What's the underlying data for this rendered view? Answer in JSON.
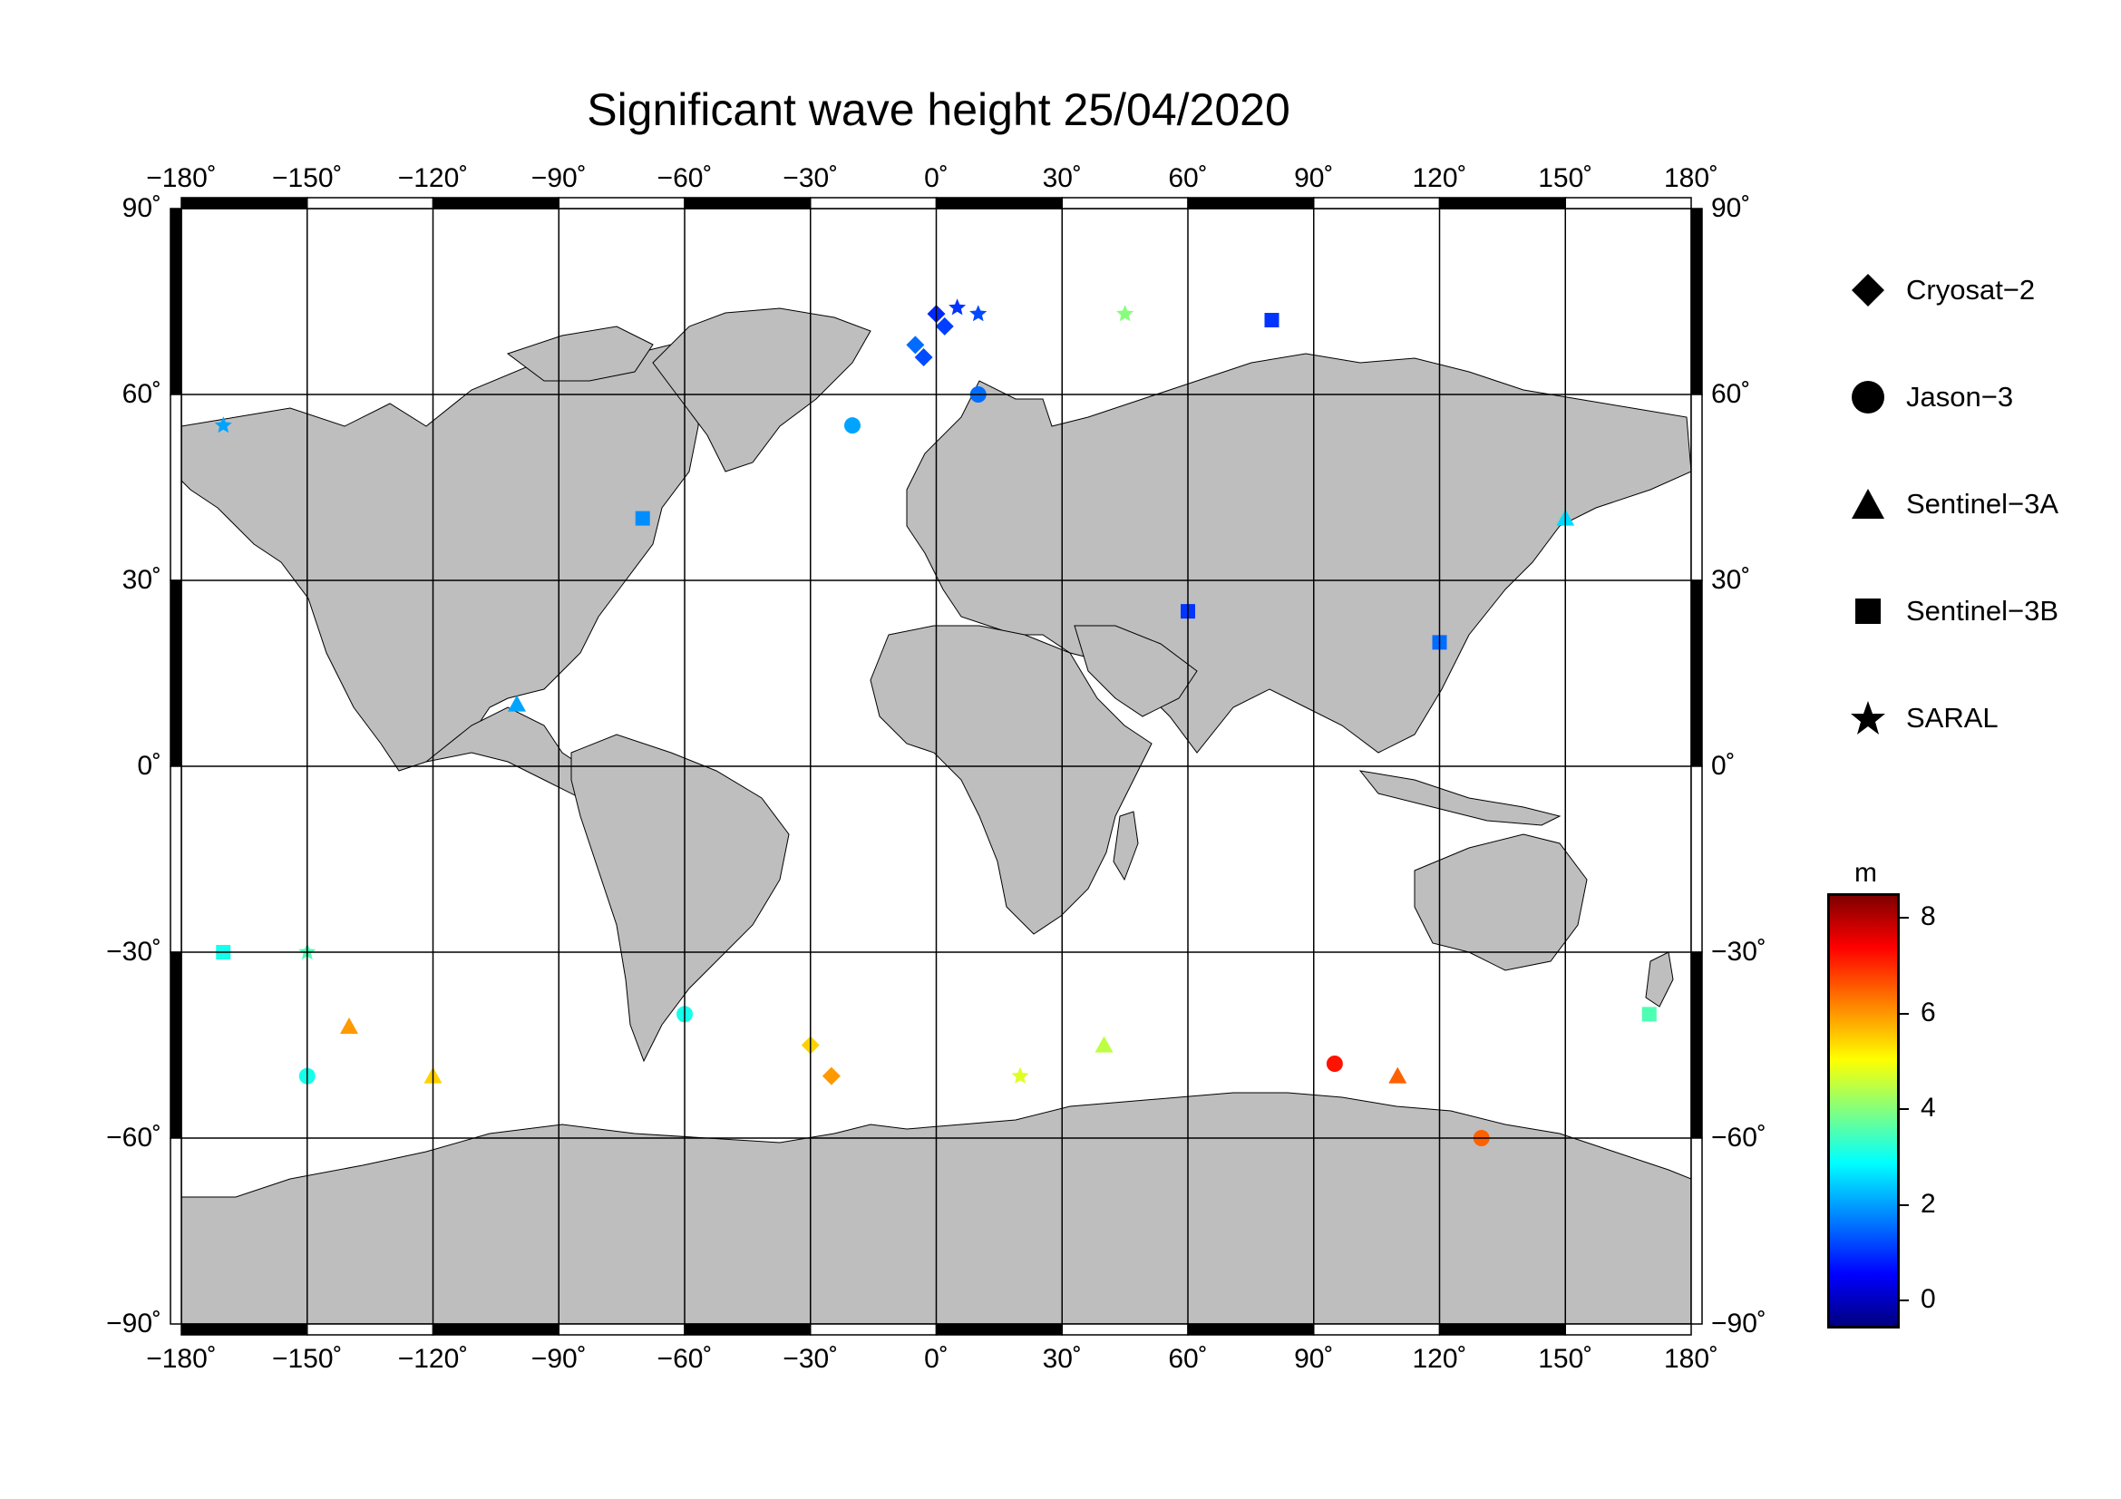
{
  "title": "Significant wave height 25/04/2020",
  "lon_ticks": [
    "−180˚",
    "−150˚",
    "−120˚",
    "−90˚",
    "−60˚",
    "−30˚",
    "0˚",
    "30˚",
    "60˚",
    "90˚",
    "120˚",
    "150˚",
    "180˚"
  ],
  "lat_ticks_left": [
    "90˚",
    "60˚",
    "30˚",
    "0˚",
    "−30˚",
    "−60˚",
    "−90˚"
  ],
  "lat_ticks_right": [
    "90˚",
    "60˚",
    "30˚",
    "0˚",
    "−30˚",
    "−60˚",
    "−90˚"
  ],
  "legend": {
    "items": [
      {
        "label": "Cryosat−2",
        "icon": "diamond-icon"
      },
      {
        "label": "Jason−3",
        "icon": "circle-icon"
      },
      {
        "label": "Sentinel−3A",
        "icon": "triangle-icon"
      },
      {
        "label": "Sentinel−3B",
        "icon": "square-icon"
      },
      {
        "label": "SARAL",
        "icon": "star-icon"
      }
    ]
  },
  "colorbar": {
    "unit": "m",
    "ticks": [
      "8",
      "6",
      "4",
      "2",
      "0"
    ],
    "range": [
      -0.6,
      8.5
    ],
    "colormap": "jet"
  },
  "colors": {
    "land": "#bebebe",
    "ocean": "#ffffff",
    "frame": "#000000"
  },
  "chart_data": {
    "type": "scatter",
    "xlim": [
      -180,
      180
    ],
    "ylim": [
      -90,
      90
    ],
    "grid": true,
    "legend_position": "right",
    "series": [
      {
        "name": "Cryosat−2",
        "points": [
          [
            -5,
            68,
            1.5
          ],
          [
            -3,
            66,
            1.2
          ],
          [
            0,
            73,
            0.9
          ],
          [
            2,
            71,
            1.1
          ],
          [
            -30,
            -45,
            5.5
          ],
          [
            -25,
            -50,
            6.0
          ]
        ]
      },
      {
        "name": "Jason−3",
        "points": [
          [
            -60,
            -40,
            3
          ],
          [
            -20,
            55,
            2
          ],
          [
            10,
            60,
            1.5
          ],
          [
            95,
            -48,
            7.2
          ],
          [
            130,
            -60,
            6.5
          ],
          [
            -150,
            -50,
            3
          ]
        ]
      },
      {
        "name": "Sentinel−3A",
        "points": [
          [
            -120,
            -50,
            5.5
          ],
          [
            -140,
            -42,
            6.0
          ],
          [
            -100,
            10,
            2.0
          ],
          [
            40,
            -45,
            4.5
          ],
          [
            110,
            -50,
            6.5
          ],
          [
            150,
            40,
            2.5
          ]
        ]
      },
      {
        "name": "Sentinel−3B",
        "points": [
          [
            -70,
            40,
            1.8
          ],
          [
            60,
            25,
            1.0
          ],
          [
            80,
            72,
            1.0
          ],
          [
            120,
            20,
            1.5
          ],
          [
            170,
            -40,
            3.5
          ],
          [
            -170,
            -30,
            3.0
          ]
        ]
      },
      {
        "name": "SARAL",
        "points": [
          [
            5,
            74,
            1.0
          ],
          [
            10,
            73,
            1.2
          ],
          [
            45,
            73,
            4.0
          ],
          [
            -170,
            55,
            2.0
          ],
          [
            -150,
            -30,
            3.5
          ],
          [
            20,
            -50,
            4.8
          ]
        ]
      }
    ]
  }
}
